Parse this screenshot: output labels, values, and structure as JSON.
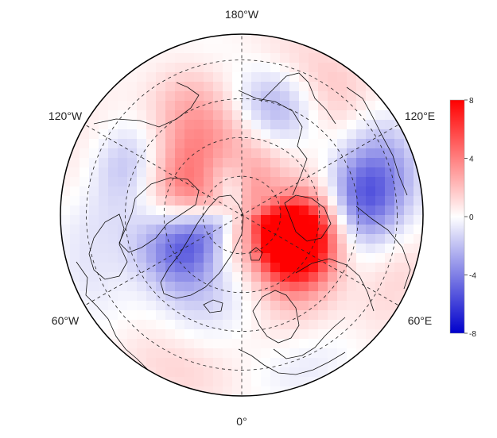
{
  "map": {
    "projection": "north-polar-stereographic",
    "graticule": {
      "style": "dashed",
      "meridian_step_deg": 60,
      "parallels_deg": [
        30,
        45,
        60,
        75
      ]
    },
    "lon_labels": {
      "top": "180°W",
      "bottom": "0°",
      "upper_left": "120°W",
      "upper_right": "120°E",
      "lower_left": "60°W",
      "lower_right": "60°E"
    },
    "field": {
      "description_visible": false,
      "colormap": "blue-white-red",
      "colors": {
        "neg": "#0000cc",
        "zero": "#ffffff",
        "pos": "#ff0000"
      },
      "anomaly_regions": [
        {
          "lon": 60,
          "lat": 72,
          "value": 6.5
        },
        {
          "lon": 50,
          "lat": 63,
          "value": 4.5
        },
        {
          "lon": 75,
          "lat": 67,
          "value": 3.5
        },
        {
          "lon": 90,
          "lat": 55,
          "value": 2.5
        },
        {
          "lon": -110,
          "lat": 62,
          "value": 3.0
        },
        {
          "lon": -140,
          "lat": 60,
          "value": 2.2
        },
        {
          "lon": 175,
          "lat": 62,
          "value": 1.8
        },
        {
          "lon": -155,
          "lat": 35,
          "value": 1.6
        },
        {
          "lon": 140,
          "lat": 35,
          "value": 1.2
        },
        {
          "lon": 100,
          "lat": 40,
          "value": 0.8
        },
        {
          "lon": -55,
          "lat": 65,
          "value": -4.0
        },
        {
          "lon": -70,
          "lat": 55,
          "value": -2.5
        },
        {
          "lon": 95,
          "lat": 45,
          "value": -6.5
        },
        {
          "lon": 110,
          "lat": 38,
          "value": -3.0
        },
        {
          "lon": 165,
          "lat": 47,
          "value": -2.5
        },
        {
          "lon": -115,
          "lat": 40,
          "value": -2.2
        },
        {
          "lon": 20,
          "lat": 60,
          "value": -1.5
        },
        {
          "lon": -90,
          "lat": 35,
          "value": -0.8
        },
        {
          "lon": 0,
          "lat": 86,
          "value": -1.2
        }
      ]
    }
  },
  "colorbar": {
    "ticks": [
      "8",
      "4",
      "0",
      "-4",
      "-8"
    ],
    "min": -8,
    "max": 8
  }
}
